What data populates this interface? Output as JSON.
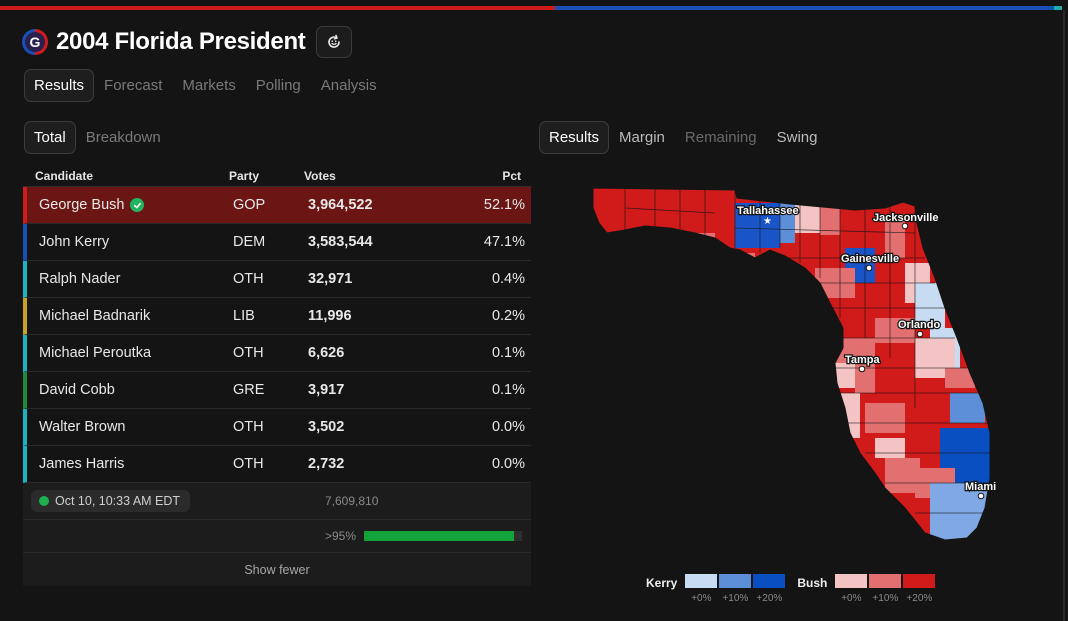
{
  "header": {
    "logo_letter": "G",
    "title": "2004 Florida President"
  },
  "main_tabs": [
    "Results",
    "Forecast",
    "Markets",
    "Polling",
    "Analysis"
  ],
  "sub_tabs": [
    "Total",
    "Breakdown"
  ],
  "map_tabs": [
    "Results",
    "Margin",
    "Remaining",
    "Swing"
  ],
  "table": {
    "headers": {
      "candidate": "Candidate",
      "party": "Party",
      "votes": "Votes",
      "pct": "Pct"
    },
    "rows": [
      {
        "name": "George Bush",
        "party": "GOP",
        "votes": "3,964,522",
        "pct": "52.1%",
        "color": "#d11a1a",
        "winner": true
      },
      {
        "name": "John Kerry",
        "party": "DEM",
        "votes": "3,583,544",
        "pct": "47.1%",
        "color": "#1850b8",
        "winner": false
      },
      {
        "name": "Ralph Nader",
        "party": "OTH",
        "votes": "32,971",
        "pct": "0.4%",
        "color": "#19b4bd",
        "winner": false
      },
      {
        "name": "Michael Badnarik",
        "party": "LIB",
        "votes": "11,996",
        "pct": "0.2%",
        "color": "#c9a21e",
        "winner": false
      },
      {
        "name": "Michael Peroutka",
        "party": "OTH",
        "votes": "6,626",
        "pct": "0.1%",
        "color": "#19b4bd",
        "winner": false
      },
      {
        "name": "David Cobb",
        "party": "GRE",
        "votes": "3,917",
        "pct": "0.1%",
        "color": "#1f8a3c",
        "winner": false
      },
      {
        "name": "Walter Brown",
        "party": "OTH",
        "votes": "3,502",
        "pct": "0.0%",
        "color": "#19b4bd",
        "winner": false
      },
      {
        "name": "James Harris",
        "party": "OTH",
        "votes": "2,732",
        "pct": "0.0%",
        "color": "#19b4bd",
        "winner": false
      }
    ],
    "timestamp": "Oct 10, 10:33 AM EDT",
    "total_votes": "7,609,810",
    "reporting_label": ">95%",
    "reporting_fraction": 0.95,
    "show_fewer": "Show fewer"
  },
  "map": {
    "cities": [
      "Tallahassee",
      "Jacksonville",
      "Gainesville",
      "Orlando",
      "Tampa",
      "Miami"
    ]
  },
  "legend": {
    "kerry_label": "Kerry",
    "bush_label": "Bush",
    "ticks": [
      "+0%",
      "+10%",
      "+20%"
    ],
    "kerry_colors": [
      "#c7dcf2",
      "#5d8fd8",
      "#0a4fc2"
    ],
    "bush_colors": [
      "#f4c4c4",
      "#e37070",
      "#d11a1a"
    ]
  },
  "colors": {
    "gop": "#d11a1a",
    "dem": "#1850b8",
    "winner_bg": "#6b1515",
    "accent_green": "#12a33a"
  }
}
